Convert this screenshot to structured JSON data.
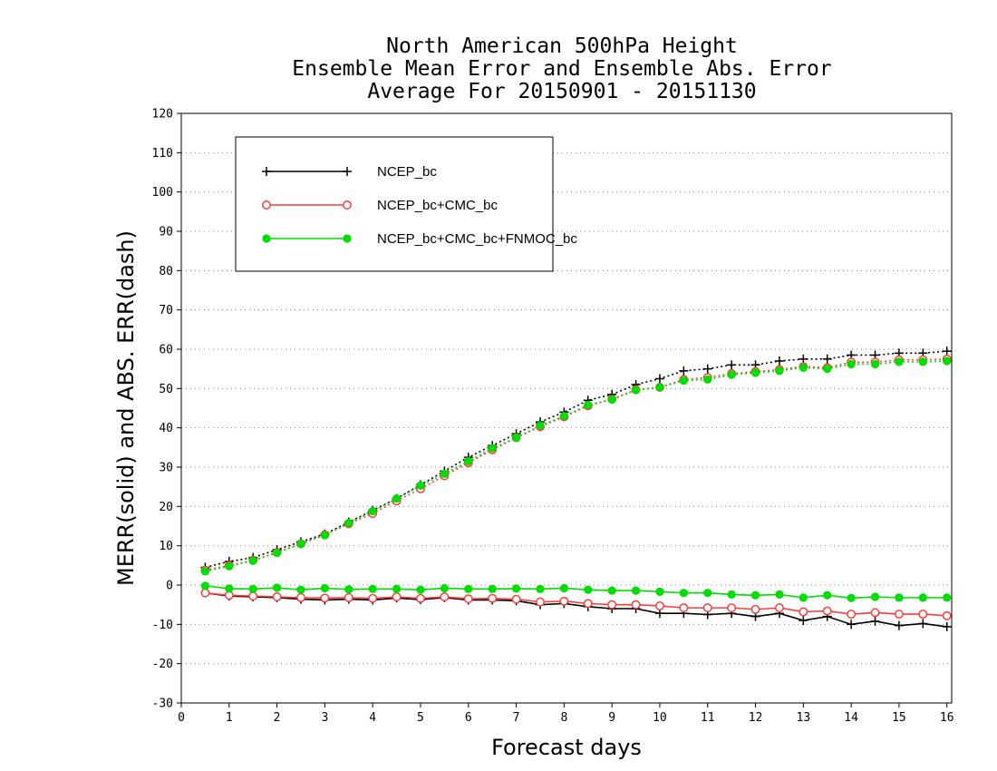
{
  "chart_data": {
    "type": "line",
    "title": [
      "North American 500hPa Height",
      "Ensemble Mean Error and Ensemble Abs. Error",
      "Average For 20150901 - 20151130"
    ],
    "xlabel": "Forecast days",
    "ylabel": "MERR(solid) and ABS. ERR(dash)",
    "xlim": [
      0,
      16.1
    ],
    "ylim": [
      -30,
      120
    ],
    "xticks": [
      0,
      1,
      2,
      3,
      4,
      5,
      6,
      7,
      8,
      9,
      10,
      11,
      12,
      13,
      14,
      15,
      16
    ],
    "yticks": [
      -30,
      -20,
      -10,
      0,
      10,
      20,
      30,
      40,
      50,
      60,
      70,
      80,
      90,
      100,
      110,
      120
    ],
    "grid": "horizontal dotted",
    "legend_position": "top-left",
    "x": [
      0.5,
      1,
      1.5,
      2,
      2.5,
      3,
      3.5,
      4,
      4.5,
      5,
      5.5,
      6,
      6.5,
      7,
      7.5,
      8,
      8.5,
      9,
      9.5,
      10,
      10.5,
      11,
      11.5,
      12,
      12.5,
      13,
      13.5,
      14,
      14.5,
      15,
      15.5,
      16
    ],
    "series": [
      {
        "name": "NCEP_bc",
        "color": "#000000",
        "marker": "plus",
        "merr": [
          -2.0,
          -2.8,
          -3.0,
          -3.2,
          -3.6,
          -3.8,
          -3.6,
          -3.8,
          -3.3,
          -3.7,
          -3.2,
          -3.8,
          -3.8,
          -4.0,
          -5.0,
          -4.7,
          -5.5,
          -6.0,
          -6.0,
          -7.2,
          -7.2,
          -7.5,
          -7.2,
          -8.0,
          -7.2,
          -9.0,
          -8.0,
          -10.0,
          -9.2,
          -10.3,
          -9.8,
          -10.6
        ],
        "abs_err": [
          4.5,
          6.0,
          7.0,
          9.0,
          11.0,
          13.0,
          16.0,
          19.0,
          22.0,
          25.5,
          29.0,
          32.5,
          35.5,
          38.5,
          41.5,
          44.0,
          47.0,
          48.5,
          51.0,
          52.5,
          54.5,
          55.0,
          56.0,
          56.0,
          57.0,
          57.5,
          57.5,
          58.5,
          58.5,
          59.0,
          59.0,
          59.5
        ]
      },
      {
        "name": "NCEP_bc+CMC_bc",
        "color": "#ff3b3b",
        "marker": "open-circle",
        "merr": [
          -2.0,
          -2.6,
          -2.8,
          -3.0,
          -3.2,
          -3.3,
          -3.2,
          -3.4,
          -3.0,
          -3.4,
          -3.0,
          -3.5,
          -3.4,
          -3.6,
          -4.3,
          -4.1,
          -4.7,
          -5.0,
          -5.0,
          -5.3,
          -5.8,
          -5.8,
          -5.8,
          -6.2,
          -5.8,
          -6.8,
          -6.6,
          -7.4,
          -7.0,
          -7.4,
          -7.4,
          -7.8
        ],
        "abs_err": [
          3.8,
          5.0,
          6.3,
          8.3,
          10.5,
          12.8,
          15.6,
          18.2,
          21.4,
          24.5,
          27.8,
          31.1,
          34.4,
          37.5,
          40.3,
          42.8,
          45.6,
          47.3,
          49.7,
          50.3,
          52.3,
          52.8,
          53.8,
          54.3,
          54.8,
          55.6,
          55.3,
          56.7,
          56.7,
          57.3,
          57.3,
          57.5
        ]
      },
      {
        "name": "NCEP_bc+CMC_bc+FNMOC_bc",
        "color": "#00dd00",
        "marker": "filled-circle",
        "merr": [
          -0.2,
          -0.9,
          -1.0,
          -0.7,
          -1.2,
          -0.8,
          -1.1,
          -1.0,
          -1.0,
          -1.2,
          -0.8,
          -1.0,
          -1.0,
          -0.9,
          -1.0,
          -0.8,
          -1.2,
          -1.4,
          -1.4,
          -1.7,
          -2.0,
          -2.0,
          -2.4,
          -2.6,
          -2.4,
          -3.2,
          -2.6,
          -3.3,
          -3.0,
          -3.2,
          -3.2,
          -3.2
        ],
        "abs_err": [
          3.5,
          4.8,
          6.2,
          8.2,
          10.5,
          12.7,
          15.8,
          18.8,
          22.0,
          25.3,
          28.3,
          31.5,
          34.8,
          37.5,
          40.6,
          43.0,
          45.8,
          47.2,
          49.6,
          50.3,
          52.0,
          52.3,
          53.5,
          54.0,
          54.5,
          55.3,
          55.0,
          56.2,
          56.2,
          56.8,
          56.8,
          57.0
        ]
      }
    ]
  }
}
